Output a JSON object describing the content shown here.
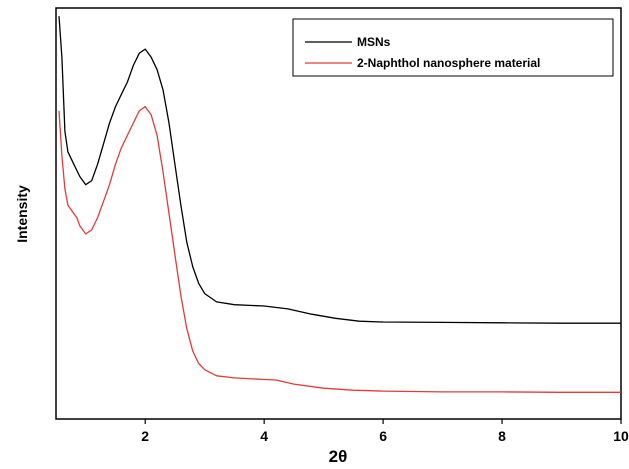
{
  "chart_data": {
    "type": "line",
    "title": "",
    "xlabel": "2θ",
    "ylabel": "Intensity",
    "xlim": [
      0.5,
      10
    ],
    "ylim": [
      0,
      100
    ],
    "x_ticks": [
      2,
      4,
      6,
      8,
      10
    ],
    "x_tick_labels": [
      "2",
      "4",
      "6",
      "8",
      "10"
    ],
    "y_ticks_shown": false,
    "grid": false,
    "legend_position": "top-right",
    "series": [
      {
        "name": "MSNs",
        "color": "#000000",
        "x": [
          0.55,
          0.6,
          0.65,
          0.7,
          0.8,
          0.9,
          1.0,
          1.1,
          1.2,
          1.3,
          1.4,
          1.5,
          1.6,
          1.7,
          1.8,
          1.9,
          2.0,
          2.1,
          2.2,
          2.3,
          2.4,
          2.5,
          2.6,
          2.7,
          2.8,
          2.9,
          3.0,
          3.2,
          3.5,
          4.0,
          4.4,
          4.8,
          5.2,
          5.6,
          6.0,
          7.0,
          8.0,
          9.0,
          10.0
        ],
        "y": [
          98,
          88,
          70,
          65,
          62,
          59,
          57,
          58,
          62,
          67,
          72,
          76,
          79,
          82,
          86,
          89,
          90,
          88,
          85,
          80,
          72,
          62,
          52,
          43,
          37,
          33,
          30.5,
          28.5,
          27.8,
          27.5,
          26.8,
          25.5,
          24.5,
          23.8,
          23.6,
          23.5,
          23.4,
          23.3,
          23.3
        ]
      },
      {
        "name": "2-Naphthol nanosphere material",
        "color": "#e23b3b",
        "x": [
          0.55,
          0.6,
          0.65,
          0.7,
          0.75,
          0.8,
          0.85,
          0.9,
          1.0,
          1.1,
          1.2,
          1.3,
          1.4,
          1.5,
          1.6,
          1.7,
          1.8,
          1.9,
          2.0,
          2.1,
          2.2,
          2.3,
          2.4,
          2.5,
          2.6,
          2.7,
          2.8,
          2.9,
          3.0,
          3.2,
          3.5,
          4.0,
          4.2,
          4.5,
          5.0,
          5.5,
          6.0,
          7.0,
          8.0,
          9.0,
          10.0
        ],
        "y": [
          75,
          64,
          56,
          52,
          51,
          50,
          49,
          47,
          45,
          46,
          49,
          53,
          57,
          62,
          66,
          69,
          72,
          75,
          76,
          74,
          69,
          60,
          50,
          40,
          30,
          22,
          16.5,
          13.5,
          12,
          10.5,
          10,
          9.6,
          9.5,
          8.5,
          7.5,
          7,
          6.8,
          6.6,
          6.6,
          6.5,
          6.5
        ]
      }
    ]
  }
}
